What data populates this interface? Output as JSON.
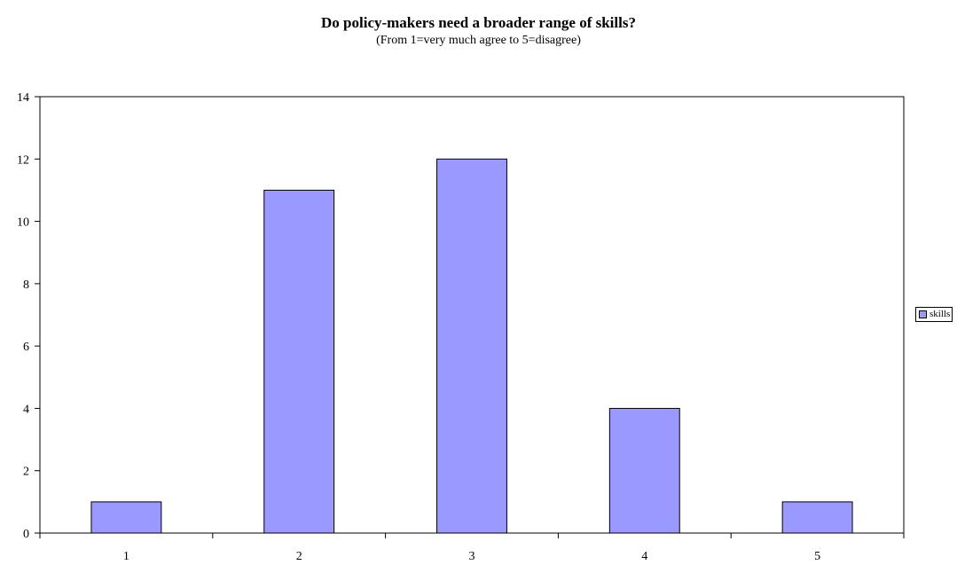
{
  "chart_data": {
    "type": "bar",
    "title": "Do policy-makers need a broader range of skills?",
    "subtitle": "(From 1=very much agree to 5=disagree)",
    "categories": [
      "1",
      "2",
      "3",
      "4",
      "5"
    ],
    "series": [
      {
        "name": "skills",
        "values": [
          1,
          11,
          12,
          4,
          1
        ],
        "color": "#9999ff"
      }
    ],
    "ylim": [
      0,
      14
    ],
    "yticks": [
      "0",
      "2",
      "4",
      "6",
      "8",
      "10",
      "12",
      "14"
    ],
    "grid": false,
    "legend": "right",
    "bar_stroke": "#000000"
  }
}
